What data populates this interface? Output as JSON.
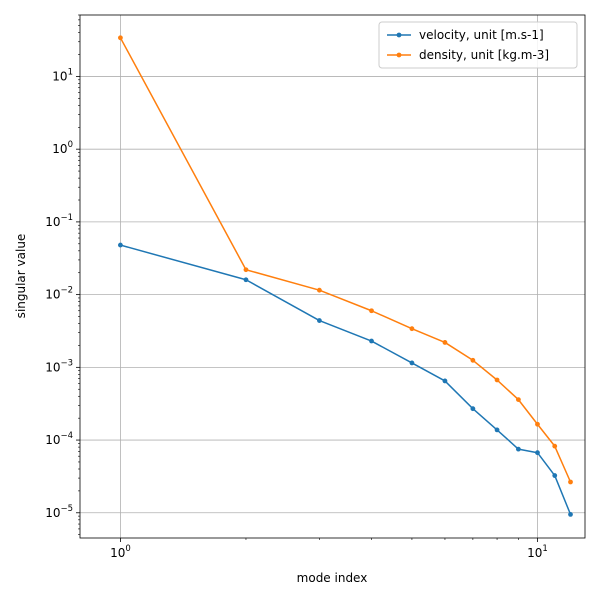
{
  "chart_data": {
    "type": "line",
    "title": "",
    "xlabel": "mode index",
    "ylabel": "singular value",
    "xscale": "log",
    "yscale": "log",
    "xlim": [
      0.8,
      13
    ],
    "ylim": [
      4.5e-06,
      70
    ],
    "grid": true,
    "legend_position": "top-right",
    "x_ticks": [
      {
        "value": 1,
        "base": "10",
        "exp": "0"
      },
      {
        "value": 10,
        "base": "10",
        "exp": "1"
      }
    ],
    "y_ticks": [
      {
        "value": 1e-05,
        "base": "10",
        "exp": "−5"
      },
      {
        "value": 0.0001,
        "base": "10",
        "exp": "−4"
      },
      {
        "value": 0.001,
        "base": "10",
        "exp": "−3"
      },
      {
        "value": 0.01,
        "base": "10",
        "exp": "−2"
      },
      {
        "value": 0.1,
        "base": "10",
        "exp": "−1"
      },
      {
        "value": 1,
        "base": "10",
        "exp": "0"
      },
      {
        "value": 10,
        "base": "10",
        "exp": "1"
      }
    ],
    "x": [
      1,
      2,
      3,
      4,
      5,
      6,
      7,
      8,
      9,
      10,
      11,
      12
    ],
    "series": [
      {
        "name": "velocity, unit [m.s-1]",
        "color": "#1f77b4",
        "values": [
          0.048,
          0.016,
          0.0044,
          0.0023,
          0.00115,
          0.00065,
          0.00027,
          0.000138,
          7.5e-05,
          6.7e-05,
          3.25e-05,
          9.5e-06
        ]
      },
      {
        "name": "density, unit [kg.m-3]",
        "color": "#ff7f0e",
        "values": [
          34,
          0.022,
          0.0115,
          0.006,
          0.0034,
          0.0022,
          0.00125,
          0.00067,
          0.00036,
          0.000165,
          8.25e-05,
          2.65e-05
        ]
      }
    ]
  }
}
